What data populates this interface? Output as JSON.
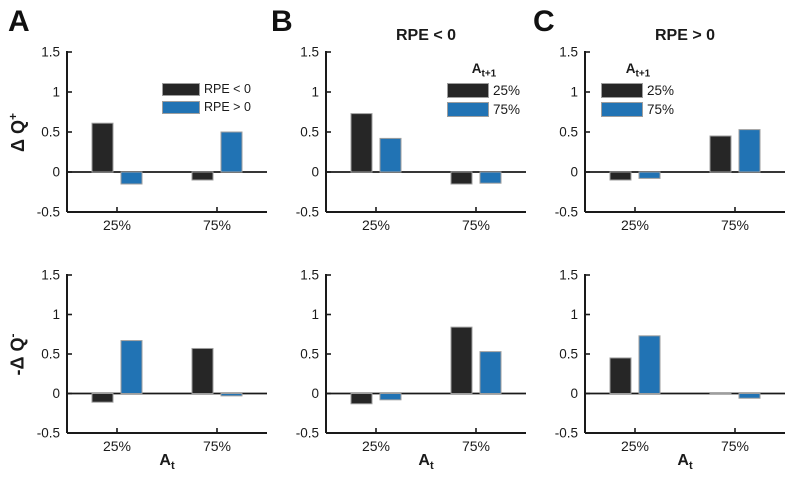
{
  "colors": {
    "axis": "#1a1a1a",
    "bar_dark": "#262626",
    "bar_blue": "#2173b4",
    "bar_edge": "#9e9e9e",
    "background": "#ffffff"
  },
  "labels": {
    "ylabel_top": {
      "base": "Δ Q",
      "sup": "+"
    },
    "ylabel_bottom": {
      "base": "-Δ Q",
      "sup": "-"
    },
    "xlabel": {
      "base": "A",
      "sub": "t"
    }
  },
  "chart_data": {
    "type": "bar",
    "ylim": [
      -0.5,
      1.5
    ],
    "yticks": [
      1.5,
      1,
      0.5,
      0,
      -0.5
    ],
    "ytick_labels": [
      "1.5",
      "1",
      "0.5",
      "0",
      "-0.5"
    ],
    "categories": [
      "25%",
      "75%"
    ],
    "xlabel": "A_t",
    "ylabel_top": "ΔQ+",
    "ylabel_bottom": "-ΔQ-",
    "grid": false,
    "columns": [
      {
        "label": "A",
        "title": "",
        "legend": {
          "entries": [
            "RPE < 0",
            "RPE > 0"
          ],
          "position": "upper-right",
          "box": false
        },
        "top": {
          "series": [
            {
              "name": "RPE < 0",
              "color": "#262626",
              "values": [
                0.61,
                -0.1
              ]
            },
            {
              "name": "RPE > 0",
              "color": "#2173b4",
              "values": [
                -0.15,
                0.5
              ]
            }
          ]
        },
        "bottom": {
          "series": [
            {
              "name": "RPE < 0",
              "color": "#262626",
              "values": [
                -0.11,
                0.57
              ]
            },
            {
              "name": "RPE > 0",
              "color": "#2173b4",
              "values": [
                0.67,
                -0.03
              ]
            }
          ]
        }
      },
      {
        "label": "B",
        "title": "RPE < 0",
        "legend": {
          "title_base": "A",
          "title_sub": "t+1",
          "entries": [
            "25%",
            "75%"
          ],
          "position": "upper-right",
          "box": false
        },
        "top": {
          "series": [
            {
              "name": "25%",
              "color": "#262626",
              "values": [
                0.73,
                -0.15
              ]
            },
            {
              "name": "75%",
              "color": "#2173b4",
              "values": [
                0.42,
                -0.14
              ]
            }
          ]
        },
        "bottom": {
          "series": [
            {
              "name": "25%",
              "color": "#262626",
              "values": [
                -0.13,
                0.84
              ]
            },
            {
              "name": "75%",
              "color": "#2173b4",
              "values": [
                -0.08,
                0.53
              ]
            }
          ]
        }
      },
      {
        "label": "C",
        "title": "RPE > 0",
        "legend": {
          "title_base": "A",
          "title_sub": "t+1",
          "entries": [
            "25%",
            "75%"
          ],
          "position": "upper-left",
          "box": false
        },
        "top": {
          "series": [
            {
              "name": "25%",
              "color": "#262626",
              "values": [
                -0.1,
                0.45
              ]
            },
            {
              "name": "75%",
              "color": "#2173b4",
              "values": [
                -0.08,
                0.53
              ]
            }
          ]
        },
        "bottom": {
          "series": [
            {
              "name": "25%",
              "color": "#262626",
              "values": [
                0.45,
                -0.01
              ]
            },
            {
              "name": "75%",
              "color": "#2173b4",
              "values": [
                0.73,
                -0.06
              ]
            }
          ]
        }
      }
    ]
  }
}
